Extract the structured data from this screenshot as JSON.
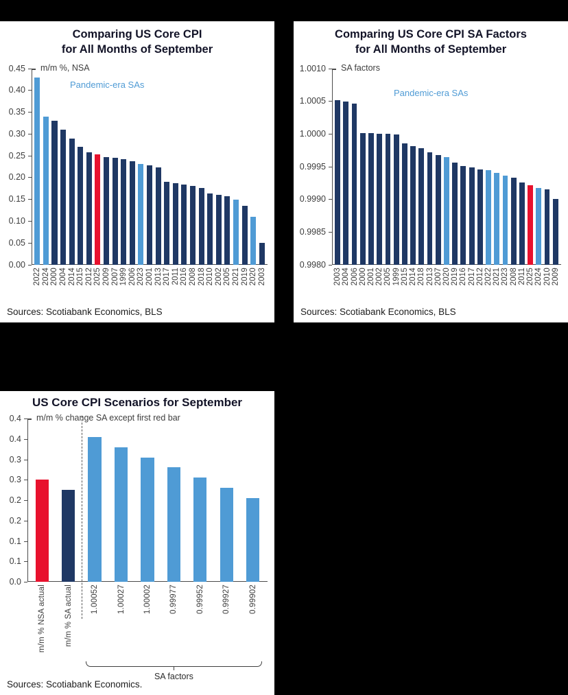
{
  "colors": {
    "navy": "#1F3864",
    "light_blue": "#4F9BD5",
    "red": "#E8112D",
    "title": "#121327",
    "axis": "#4A4A4A",
    "tick_text": "#3D3D3D",
    "annotation_blue": "#4F9BD5"
  },
  "chart_data": [
    {
      "type": "bar",
      "title_line1": "Comparing US Core CPI",
      "title_line2": "for All Months of September",
      "ylabel_caption": "m/m %, NSA",
      "annotation": "Pandemic-era SAs",
      "sources": "Sources: Scotiabank Economics, BLS",
      "ylim": [
        0,
        0.45
      ],
      "ytick_values": [
        0,
        0.05,
        0.1,
        0.15,
        0.2,
        0.25,
        0.3,
        0.35,
        0.4,
        0.45
      ],
      "ytick_labels": [
        "0.00",
        "0.05",
        "0.10",
        "0.15",
        "0.20",
        "0.25",
        "0.30",
        "0.35",
        "0.40",
        "0.45"
      ],
      "categories": [
        "2022",
        "2024",
        "2000",
        "2004",
        "2014",
        "2015",
        "2012",
        "2025",
        "2009",
        "2007",
        "1999",
        "2006",
        "2023",
        "2001",
        "2013",
        "2017",
        "2011",
        "2016",
        "2008",
        "2018",
        "2010",
        "2002",
        "2005",
        "2021",
        "2019",
        "2020",
        "2003"
      ],
      "values": [
        0.43,
        0.34,
        0.33,
        0.31,
        0.29,
        0.27,
        0.258,
        0.253,
        0.247,
        0.245,
        0.243,
        0.238,
        0.231,
        0.228,
        0.224,
        0.191,
        0.187,
        0.184,
        0.181,
        0.177,
        0.163,
        0.16,
        0.157,
        0.15,
        0.136,
        0.11,
        0.05
      ],
      "bar_colors": [
        "light_blue",
        "light_blue",
        "navy",
        "navy",
        "navy",
        "navy",
        "navy",
        "red",
        "navy",
        "navy",
        "navy",
        "navy",
        "light_blue",
        "navy",
        "navy",
        "navy",
        "navy",
        "navy",
        "navy",
        "navy",
        "navy",
        "navy",
        "navy",
        "light_blue",
        "navy",
        "light_blue",
        "navy"
      ]
    },
    {
      "type": "bar",
      "title_line1": "Comparing US Core CPI SA Factors",
      "title_line2": "for All Months of September",
      "ylabel_caption": "SA factors",
      "annotation": "Pandemic-era SAs",
      "sources": "Sources: Scotiabank Economics, BLS",
      "ylim": [
        0.998,
        1.001
      ],
      "ytick_values": [
        0.998,
        0.9985,
        0.999,
        0.9995,
        1.0,
        1.0005,
        1.001
      ],
      "ytick_labels": [
        "0.9980",
        "0.9985",
        "0.9990",
        "0.9995",
        "1.0000",
        "1.0005",
        "1.0010"
      ],
      "categories": [
        "2003",
        "2004",
        "2006",
        "2000",
        "2001",
        "2002",
        "2005",
        "1999",
        "2015",
        "2014",
        "2018",
        "2013",
        "2007",
        "2020",
        "2019",
        "2016",
        "2017",
        "2012",
        "2022",
        "2021",
        "2023",
        "2008",
        "2011",
        "2025",
        "2024",
        "2010",
        "2009"
      ],
      "values": [
        1.00052,
        1.0005,
        1.00046,
        1.00001,
        1.00001,
        1.0,
        1.0,
        0.99999,
        0.99986,
        0.99981,
        0.99978,
        0.99972,
        0.99968,
        0.99965,
        0.99956,
        0.99951,
        0.99949,
        0.99946,
        0.99945,
        0.99941,
        0.99936,
        0.99933,
        0.99926,
        0.99922,
        0.99917,
        0.99915,
        0.99901
      ],
      "bar_colors": [
        "navy",
        "navy",
        "navy",
        "navy",
        "navy",
        "navy",
        "navy",
        "navy",
        "navy",
        "navy",
        "navy",
        "navy",
        "navy",
        "light_blue",
        "navy",
        "navy",
        "navy",
        "navy",
        "light_blue",
        "light_blue",
        "light_blue",
        "navy",
        "navy",
        "red",
        "light_blue",
        "navy",
        "navy"
      ]
    },
    {
      "type": "bar",
      "title": "US Core CPI Scenarios for September",
      "ylabel_caption": "m/m % change SA except first red bar",
      "sources": "Sources: Scotiabank Economics.",
      "ylim": [
        0,
        0.4
      ],
      "ytick_values": [
        0,
        0.05,
        0.1,
        0.15,
        0.2,
        0.25,
        0.3,
        0.35,
        0.4
      ],
      "ytick_labels": [
        "0.0",
        "0.1",
        "0.1",
        "0.2",
        "0.2",
        "0.3",
        "0.3",
        "0.4",
        "0.4"
      ],
      "categories": [
        "m/m % NSA actual",
        "m/m % SA actual",
        "1.00052",
        "1.00027",
        "1.00002",
        "0.99977",
        "0.99952",
        "0.99927",
        "0.99902"
      ],
      "values": [
        0.25,
        0.225,
        0.355,
        0.33,
        0.305,
        0.28,
        0.255,
        0.23,
        0.205
      ],
      "bar_colors": [
        "red",
        "navy",
        "light_blue",
        "light_blue",
        "light_blue",
        "light_blue",
        "light_blue",
        "light_blue",
        "light_blue"
      ],
      "separator_index": 2,
      "brace": {
        "from": 2,
        "to": 8,
        "label": "SA factors"
      }
    }
  ]
}
